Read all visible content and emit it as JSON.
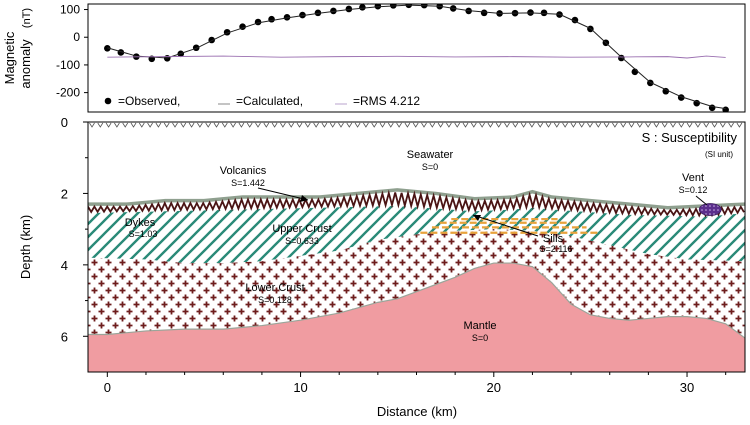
{
  "chart_data": [
    {
      "type": "line",
      "ylabel": "Magnetic anomaly (nT)",
      "ylabel_parts": [
        "Magnetic",
        "anomaly",
        "(nT)"
      ],
      "ylim": [
        -270,
        120
      ],
      "xlim": [
        -1,
        33
      ],
      "yticks": [
        100,
        0,
        -100,
        -200
      ],
      "ytick_labels": [
        "100",
        "0",
        "-100",
        "-200"
      ],
      "legend": {
        "placement": "bottom-left",
        "observed": "=Observed,",
        "calculated": "=Calculated,",
        "rms": "=RMS 4.212"
      },
      "series": [
        {
          "name": "Observed",
          "style": "points",
          "color": "#000000",
          "x": [
            0,
            0.7,
            1.5,
            2.3,
            3.1,
            3.8,
            4.6,
            5.4,
            6.2,
            7.0,
            7.8,
            8.5,
            9.3,
            10.1,
            10.9,
            11.7,
            12.5,
            13.2,
            14.0,
            14.8,
            15.6,
            16.4,
            17.2,
            17.9,
            18.7,
            19.5,
            20.3,
            21.1,
            21.9,
            22.6,
            23.4,
            24.2,
            25.0,
            25.8,
            26.6,
            27.3,
            28.1,
            28.9,
            29.7,
            30.5,
            31.3,
            32.0
          ],
          "y": [
            -40,
            -55,
            -70,
            -78,
            -76,
            -60,
            -38,
            -10,
            18,
            38,
            55,
            65,
            72,
            80,
            88,
            95,
            102,
            108,
            112,
            115,
            117,
            116,
            112,
            104,
            95,
            88,
            86,
            87,
            89,
            88,
            82,
            62,
            30,
            -20,
            -75,
            -125,
            -165,
            -195,
            -218,
            -238,
            -255,
            -262
          ]
        },
        {
          "name": "Calculated",
          "style": "line",
          "color": "#222222",
          "x": [
            0,
            1.5,
            3.1,
            4.6,
            6.2,
            7.8,
            9.3,
            10.9,
            12.5,
            14.0,
            15.6,
            17.2,
            18.7,
            20.3,
            21.9,
            23.4,
            25.0,
            26.6,
            28.1,
            29.7,
            31.3,
            32.0
          ],
          "y": [
            -38,
            -68,
            -75,
            -40,
            15,
            52,
            70,
            86,
            100,
            110,
            116,
            112,
            96,
            86,
            88,
            83,
            32,
            -72,
            -163,
            -215,
            -250,
            -258
          ]
        },
        {
          "name": "RMS",
          "style": "line",
          "color": "#9a6fb0",
          "x": [
            0,
            3,
            6,
            9,
            12,
            15,
            18,
            21,
            24,
            27,
            29,
            30,
            31,
            32
          ],
          "y": [
            -72,
            -70,
            -68,
            -72,
            -70,
            -69,
            -71,
            -70,
            -72,
            -71,
            -70,
            -75,
            -68,
            -73
          ]
        }
      ]
    },
    {
      "type": "area",
      "ylabel": "Depth (km)",
      "xlabel": "Distance (km)",
      "xlim": [
        -1,
        33
      ],
      "ylim": [
        7,
        0
      ],
      "xticks": [
        0,
        10,
        20,
        30
      ],
      "xtick_labels": [
        "0",
        "10",
        "20",
        "30"
      ],
      "yticks": [
        0,
        2,
        4,
        6
      ],
      "ytick_labels": [
        "0",
        "2",
        "4",
        "6"
      ],
      "header": {
        "title": "S : Susceptibility",
        "unit": "(SI unit)"
      },
      "colors": {
        "upper_crust": "#2a8a78",
        "lower_crust": "#6e1d1d",
        "mantle": "#f09ca1",
        "mantle_edge": "#9aa59a",
        "volcanic_top": "#8fa08f",
        "sills": "#e8a33c",
        "vent": "#5b2f8c"
      },
      "boundaries": {
        "seafloor": {
          "x": [
            -1,
            1,
            3,
            5,
            7,
            9,
            11,
            13,
            15,
            17,
            19,
            21,
            22,
            23,
            25,
            27,
            29,
            31,
            33
          ],
          "depth": [
            2.3,
            2.3,
            2.2,
            2.2,
            2.1,
            2.1,
            2.1,
            2.0,
            1.9,
            2.0,
            2.15,
            2.1,
            1.95,
            2.1,
            2.2,
            2.3,
            2.4,
            2.35,
            2.3
          ]
        },
        "volcanics_base": {
          "x": [
            -1,
            3,
            7,
            11,
            15,
            19,
            21,
            22,
            23,
            27,
            31,
            33
          ],
          "depth": [
            2.55,
            2.5,
            2.45,
            2.4,
            2.35,
            2.5,
            2.45,
            2.4,
            2.45,
            2.6,
            2.65,
            2.55
          ]
        },
        "upper_crust_base": {
          "x": [
            -1,
            2,
            4,
            6,
            8,
            10,
            12,
            14,
            16,
            18,
            20,
            22,
            24,
            26,
            28,
            30,
            33
          ],
          "depth": [
            3.8,
            3.85,
            3.95,
            3.95,
            3.9,
            3.75,
            3.6,
            3.3,
            3.15,
            3.05,
            3.0,
            3.05,
            3.2,
            3.45,
            3.7,
            3.85,
            3.9
          ]
        },
        "lower_crust_base": {
          "x": [
            -1,
            0,
            1,
            2,
            4,
            6,
            8,
            10,
            12,
            13,
            14,
            15,
            16,
            17,
            18,
            19,
            20,
            21,
            22,
            23,
            24,
            25,
            26,
            27,
            28,
            29,
            30,
            31,
            32,
            33
          ],
          "depth": [
            5.95,
            5.95,
            5.9,
            5.85,
            5.8,
            5.8,
            5.7,
            5.55,
            5.35,
            5.2,
            5.05,
            4.95,
            4.75,
            4.55,
            4.35,
            4.1,
            3.95,
            3.95,
            4.05,
            4.5,
            5.1,
            5.4,
            5.5,
            5.55,
            5.5,
            5.45,
            5.45,
            5.5,
            5.65,
            6.05
          ]
        },
        "sills": [
          {
            "x": [
              17.2,
              24.0
            ],
            "depth": 2.82
          },
          {
            "x": [
              16.8,
              24.8
            ],
            "depth": 2.95
          },
          {
            "x": [
              16.2,
              25.4
            ],
            "depth": 3.1
          },
          {
            "x": [
              17.8,
              23.3
            ],
            "depth": 2.72
          }
        ],
        "vent": {
          "x": 31.2,
          "depth": 2.45
        }
      },
      "annotations": {
        "seawater": [
          "Seawater",
          "S=0"
        ],
        "volcanics": [
          "Volcanics",
          "S=1.442"
        ],
        "dykes": [
          "Dykes",
          "S=1.03"
        ],
        "upper_crust": [
          "Upper Crust",
          "S=0.633"
        ],
        "sills": [
          "Sills",
          "S=2.116"
        ],
        "lower_crust": [
          "Lower Crust",
          "S=0.128"
        ],
        "mantle": [
          "Mantle",
          "S=0"
        ],
        "vent": [
          "Vent",
          "S=0.12"
        ]
      }
    }
  ]
}
